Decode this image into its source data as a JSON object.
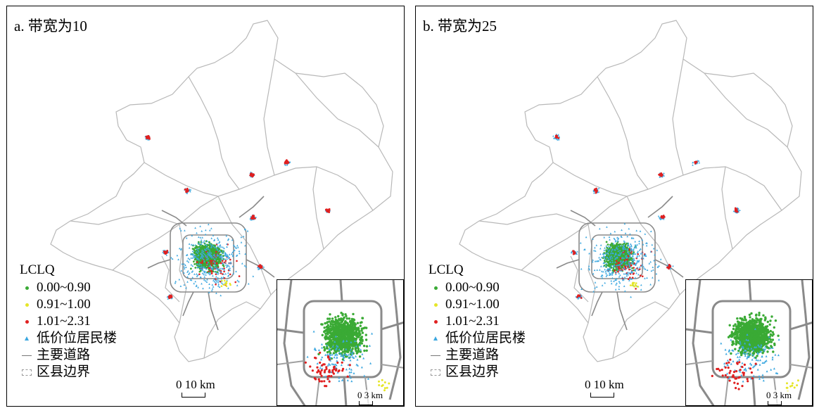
{
  "panels": [
    {
      "id": "a",
      "title": "a. 带宽为10"
    },
    {
      "id": "b",
      "title": "b. 带宽为25"
    }
  ],
  "legend": {
    "heading": "LCLQ",
    "classes": [
      {
        "label": "0.00~0.90",
        "color": "#3aaa35"
      },
      {
        "label": "0.91~1.00",
        "color": "#e6e629"
      },
      {
        "label": "1.01~2.31",
        "color": "#e02020"
      }
    ],
    "low_price_housing": {
      "label": "低价位居民楼",
      "color": "#3ba7e0"
    },
    "main_roads": {
      "label": "主要道路",
      "color": "#777777"
    },
    "district_boundary": {
      "label": "区县边界",
      "color": "#aaaaaa"
    }
  },
  "scale_main": "0  10 km",
  "scale_inset": "0  3 km"
}
